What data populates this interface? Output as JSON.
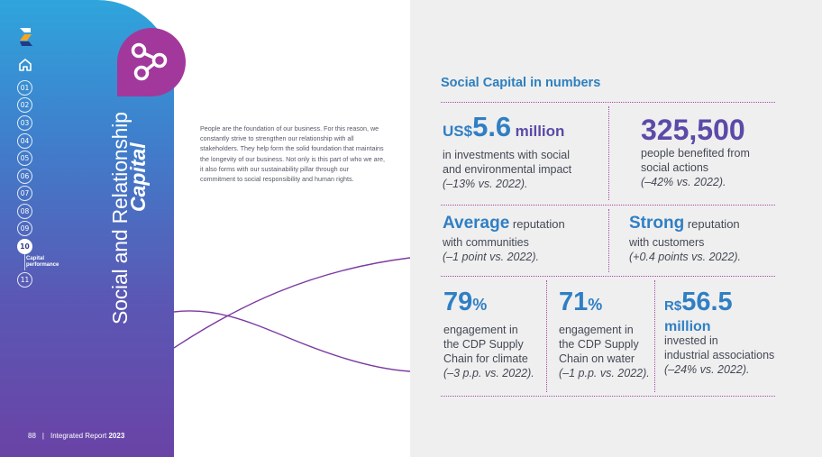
{
  "sidebar": {
    "nav_numbers": [
      "01",
      "02",
      "03",
      "04",
      "05",
      "06",
      "07",
      "08",
      "09",
      "10",
      "11"
    ],
    "active_label": "Capital performance",
    "title_line1": "Social and Relationship",
    "title_line2": "Capital",
    "footer_page": "88",
    "footer_sep": "|",
    "footer_text_regular": "Integrated Report ",
    "footer_text_bold": "2023",
    "icons": [
      "logo-icon",
      "home-icon",
      "network-icon"
    ]
  },
  "intro": {
    "paragraph": "People are the foundation of our business. For this reason, we constantly strive to strengthen our relationship with all stakeholders. They help form the solid foundation that maintains the longevity of our business. Not only is this part of who we are, it also forms with our sustainability pillar through our commitment to social responsibility and human rights."
  },
  "panel": {
    "title": "Social Capital in numbers",
    "stats": {
      "investment": {
        "prefix": "US$",
        "value": "5.6",
        "unit": "million",
        "desc_line1": "in investments with social",
        "desc_line2": "and environmental impact",
        "note": "(–13% vs. 2022)."
      },
      "beneficiaries": {
        "value": "325,500",
        "desc_line1": "people benefited from",
        "desc_line2": "social actions",
        "note": "(–42% vs. 2022)."
      },
      "reputation_communities": {
        "value": "Average",
        "label": " reputation",
        "desc": "with communities",
        "note": "(–1 point vs. 2022)."
      },
      "reputation_customers": {
        "value": "Strong",
        "label": " reputation",
        "desc": "with customers",
        "note": "(+0.4 points vs. 2022)."
      },
      "cdp_climate": {
        "value": "79",
        "pct": "%",
        "desc_line1": "engagement in",
        "desc_line2": "the CDP Supply",
        "desc_line3": "Chain for climate",
        "note": "(–3 p.p. vs. 2022)."
      },
      "cdp_water": {
        "value": "71",
        "pct": "%",
        "desc_line1": "engagement in",
        "desc_line2": "the CDP Supply",
        "desc_line3": "Chain on water",
        "note": "(–1 p.p. vs. 2022)."
      },
      "associations": {
        "prefix": "R$",
        "value": "56.5",
        "unit": "million",
        "desc_line1": "invested in",
        "desc_line2": "industrial associations",
        "note": "(–24% vs. 2022)."
      }
    }
  }
}
